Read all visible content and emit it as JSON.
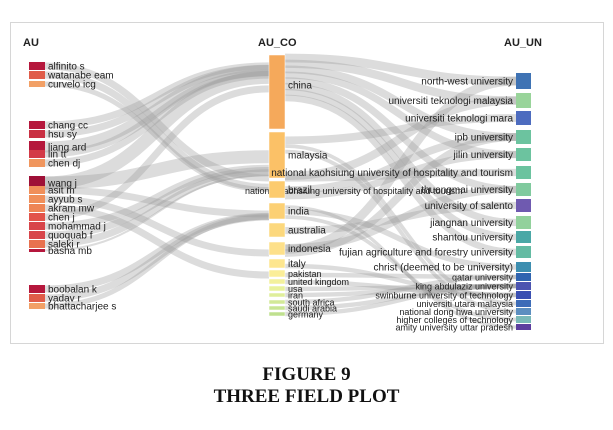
{
  "headers": {
    "au": "AU",
    "au_co": "AU_CO",
    "au_un": "AU_UN"
  },
  "authors": [
    {
      "name": "alfinito s",
      "color": "#b5173c"
    },
    {
      "name": "watanabe eam",
      "color": "#e05c49"
    },
    {
      "name": "curvelo icg",
      "color": "#f2a066"
    },
    {
      "name": "chang cc",
      "color": "#b5173c"
    },
    {
      "name": "hsu sy",
      "color": "#c93043"
    },
    {
      "name": "liang ard",
      "color": "#b5173c"
    },
    {
      "name": "lin tt",
      "color": "#d33a47"
    },
    {
      "name": "chen dj",
      "color": "#f0965e"
    },
    {
      "name": "wang j",
      "color": "#9e1037"
    },
    {
      "name": "asit m",
      "color": "#f08f5a"
    },
    {
      "name": "ayyub s",
      "color": "#f08f5a"
    },
    {
      "name": "akram mw",
      "color": "#ee8555"
    },
    {
      "name": "chen j",
      "color": "#e2534a"
    },
    {
      "name": "mohammad j",
      "color": "#d8454a"
    },
    {
      "name": "quoquab f",
      "color": "#d8454a"
    },
    {
      "name": "saleki r",
      "color": "#e8714f"
    },
    {
      "name": "basha mb",
      "color": "#b5173c"
    },
    {
      "name": "boobalan k",
      "color": "#b5173c"
    },
    {
      "name": "yadav r",
      "color": "#e05c49"
    },
    {
      "name": "bhattacharjee s",
      "color": "#f2a066"
    }
  ],
  "countries": [
    {
      "name": "china",
      "color": "#f5a95b"
    },
    {
      "name": "malaysia",
      "color": "#fbc167"
    },
    {
      "name": "national kaohsiung university of hospitality and tourism",
      "color": "#fbc167"
    },
    {
      "name": "brazil",
      "color": "#fccb6e"
    },
    {
      "name": "india",
      "color": "#fcd074"
    },
    {
      "name": "australia",
      "color": "#fcd87d"
    },
    {
      "name": "indonesia",
      "color": "#fde08a"
    },
    {
      "name": "italy",
      "color": "#fde68f"
    },
    {
      "name": "pakistan",
      "color": "#fbee98"
    },
    {
      "name": "united kingdom",
      "color": "#f3f19c"
    },
    {
      "name": "usa",
      "color": "#e9f29c"
    },
    {
      "name": "iran",
      "color": "#dfee9a"
    },
    {
      "name": "south africa",
      "color": "#d2e997"
    },
    {
      "name": "saudi arabia",
      "color": "#c8e594"
    },
    {
      "name": "germany",
      "color": "#bfe08f"
    }
  ],
  "universities": [
    {
      "name": "north-west university",
      "color": "#3f73b4"
    },
    {
      "name": "universiti teknologi malaysia",
      "color": "#99d49a"
    },
    {
      "name": "universiti teknologi mara",
      "color": "#4d6cbf"
    },
    {
      "name": "ipb university",
      "color": "#6cc39f"
    },
    {
      "name": "jilin university",
      "color": "#6cc39f"
    },
    {
      "name": "national kaohsiung university of hospitality and tourism",
      "color": "#6cc39f"
    },
    {
      "name": "thuongmai university",
      "color": "#80ca9e"
    },
    {
      "name": "university of salento",
      "color": "#6f5ab0"
    },
    {
      "name": "jiangnan university",
      "color": "#92d19c"
    },
    {
      "name": "shantou university",
      "color": "#4aa8a6"
    },
    {
      "name": "fujian agriculture and forestry university",
      "color": "#64bba3"
    },
    {
      "name": "christ (deemed to be university)",
      "color": "#3d8eb0"
    },
    {
      "name": "qatar university",
      "color": "#2f64b0"
    },
    {
      "name": "king abdulaziz university",
      "color": "#4b53b0"
    },
    {
      "name": "swinburne university of technology",
      "color": "#3a4fb2"
    },
    {
      "name": "universiti utara malaysia",
      "color": "#3d6cb8"
    },
    {
      "name": "national dong hwa university",
      "color": "#5c8ec0"
    },
    {
      "name": "higher colleges of technology",
      "color": "#7ab9b8"
    },
    {
      "name": "amity university uttar pradesh",
      "color": "#5c3e9e"
    }
  ],
  "caption": {
    "line1": "FIGURE 9",
    "line2": "THREE FIELD PLOT"
  }
}
